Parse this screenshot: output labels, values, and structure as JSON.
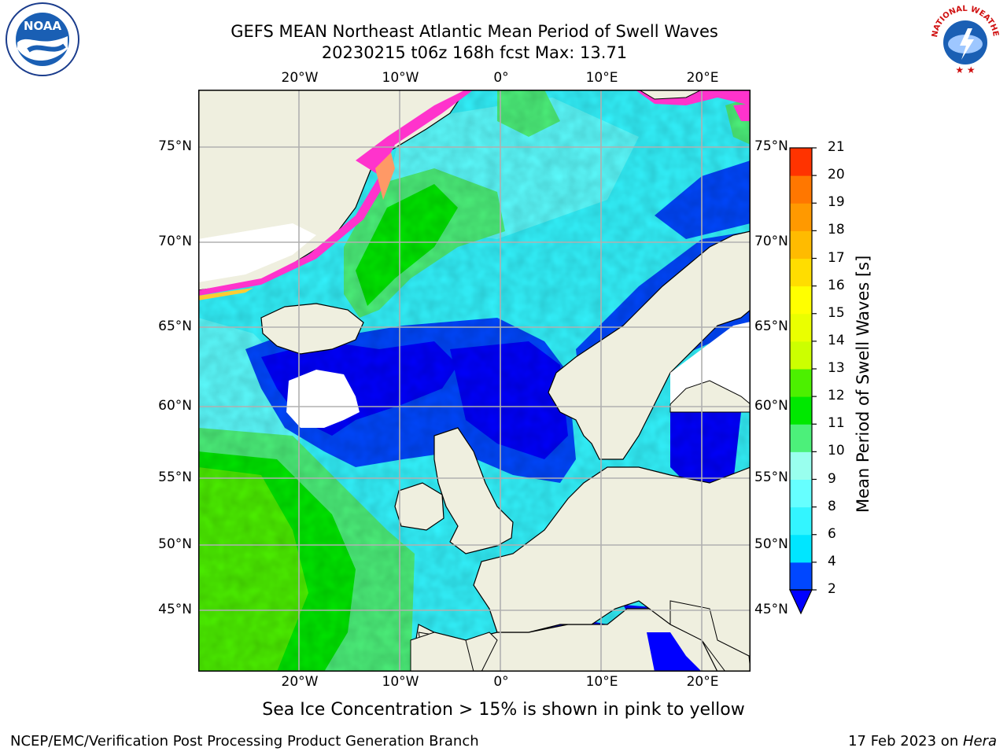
{
  "header": {
    "title_line1": "GEFS MEAN Northeast Atlantic Mean Period of Swell Waves",
    "title_line2": "20230215 t06z 168h fcst   Max: 13.71"
  },
  "logos": {
    "left": "NOAA",
    "right": "NATIONAL WEATHER SERVICE"
  },
  "map": {
    "lon_labels": [
      "20°W",
      "10°W",
      "0°",
      "10°E",
      "20°E"
    ],
    "lat_labels": [
      "75°N",
      "70°N",
      "65°N",
      "60°N",
      "55°N",
      "50°N",
      "45°N"
    ]
  },
  "colorbar": {
    "title": "Mean Period of Swell Waves [s]",
    "ticks": [
      "2",
      "4",
      "6",
      "8",
      "9",
      "10",
      "11",
      "12",
      "13",
      "14",
      "15",
      "16",
      "17",
      "18",
      "19",
      "20",
      "21"
    ],
    "colors": [
      "#0047ff",
      "#00e6ff",
      "#33f5ff",
      "#66ffff",
      "#99ffee",
      "#4cf07a",
      "#00e800",
      "#4cf000",
      "#ccff00",
      "#eaff00",
      "#ffff00",
      "#ffdd00",
      "#ffbb00",
      "#ff9900",
      "#ff7700",
      "#ff3300",
      "#ff0000"
    ],
    "extend_color": "#0000ff"
  },
  "note": "Sea Ice Concentration > 15% is shown in pink to yellow",
  "footer": {
    "left": "NCEP/EMC/Verification Post Processing Product Generation Branch",
    "right_prefix": "17 Feb 2023 on ",
    "right_host": "Hera"
  }
}
